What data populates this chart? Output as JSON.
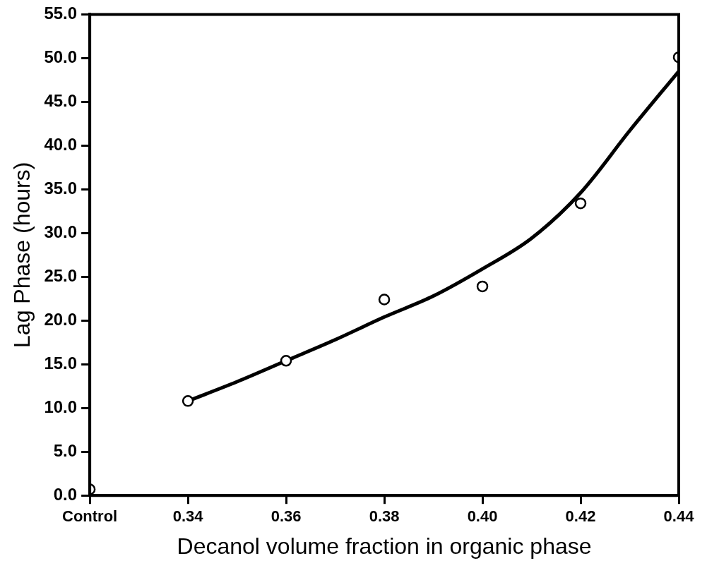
{
  "chart_data": {
    "type": "scatter",
    "xlabel": "Decanol volume fraction in organic phase",
    "ylabel": "Lag Phase (hours)",
    "xlim": [
      0.32,
      0.44
    ],
    "xticks": [
      {
        "value": 0.32,
        "label": "Control"
      },
      {
        "value": 0.34,
        "label": "0.34"
      },
      {
        "value": 0.36,
        "label": "0.36"
      },
      {
        "value": 0.38,
        "label": "0.38"
      },
      {
        "value": 0.4,
        "label": "0.40"
      },
      {
        "value": 0.42,
        "label": "0.42"
      },
      {
        "value": 0.44,
        "label": "0.44"
      }
    ],
    "ylim": [
      0,
      55
    ],
    "yticks": [
      {
        "value": 0,
        "label": "0.0"
      },
      {
        "value": 5,
        "label": "5.0"
      },
      {
        "value": 10,
        "label": "10.0"
      },
      {
        "value": 15,
        "label": "15.0"
      },
      {
        "value": 20,
        "label": "20.0"
      },
      {
        "value": 25,
        "label": "25.0"
      },
      {
        "value": 30,
        "label": "30.0"
      },
      {
        "value": 35,
        "label": "35.0"
      },
      {
        "value": 40,
        "label": "40.0"
      },
      {
        "value": 45,
        "label": "45.0"
      },
      {
        "value": 50,
        "label": "50.0"
      },
      {
        "value": 55,
        "label": "55.0"
      }
    ],
    "grid": false,
    "legend": false,
    "series": [
      {
        "type": "scatter",
        "marker": "circle",
        "color": "#000000",
        "x": [
          0.32,
          0.34,
          0.36,
          0.38,
          0.4,
          0.42,
          0.44
        ],
        "values": [
          0.7,
          10.8,
          15.4,
          22.4,
          23.9,
          33.4,
          50.1
        ]
      },
      {
        "type": "line",
        "marker": "none",
        "line_style": "solid",
        "color": "#000000",
        "x": [
          0.34,
          0.35,
          0.36,
          0.37,
          0.38,
          0.39,
          0.4,
          0.41,
          0.42,
          0.43,
          0.44
        ],
        "values": [
          10.8,
          13.0,
          15.4,
          17.8,
          20.4,
          22.8,
          25.9,
          29.4,
          34.6,
          41.7,
          48.5
        ]
      }
    ]
  }
}
